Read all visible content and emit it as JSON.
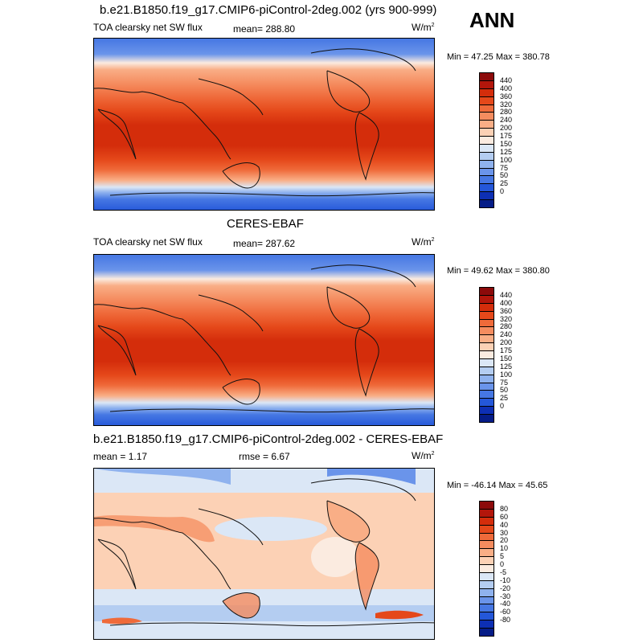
{
  "season": "ANN",
  "panels": [
    {
      "title": "b.e21.B1850.f19_g17.CMIP6-piControl-2deg.002 (yrs 900-999)",
      "left_label": "TOA clearsky net SW flux",
      "center_label": "mean= 288.80",
      "unit": "W/m",
      "unit_exp": "2",
      "minmax": "Min =  47.25 Max = 380.78"
    },
    {
      "title": "CERES-EBAF",
      "left_label": "TOA clearsky net SW flux",
      "center_label": "mean= 287.62",
      "unit": "W/m",
      "unit_exp": "2",
      "minmax": "Min =  49.62 Max = 380.80"
    },
    {
      "title": "b.e21.B1850.f19_g17.CMIP6-piControl-2deg.002 - CERES-EBAF",
      "left_label": "mean =   1.17",
      "center_label": "rmse =   6.67",
      "unit": "W/m",
      "unit_exp": "2",
      "minmax": "Min = -46.14 Max =  45.65"
    }
  ],
  "colorbar_abs": {
    "labels": [
      "440",
      "400",
      "360",
      "320",
      "280",
      "240",
      "200",
      "175",
      "150",
      "125",
      "100",
      "75",
      "50",
      "25",
      "0"
    ],
    "colors": [
      "#8c0a0a",
      "#b3160b",
      "#d42d0b",
      "#e5481a",
      "#ef6a3a",
      "#f58c5f",
      "#f9ae86",
      "#fcd1b5",
      "#fbebe0",
      "#dbe7f6",
      "#b4cdf1",
      "#8fb2ee",
      "#6a94ea",
      "#4677e3",
      "#2457d9",
      "#0d2fb4",
      "#051c87"
    ]
  },
  "colorbar_diff": {
    "labels": [
      "80",
      "60",
      "40",
      "30",
      "20",
      "10",
      "5",
      "0",
      "-5",
      "-10",
      "-20",
      "-30",
      "-40",
      "-60",
      "-80"
    ],
    "colors": [
      "#8c0a0a",
      "#b3160b",
      "#d42d0b",
      "#e5481a",
      "#ef6a3a",
      "#f58c5f",
      "#f9ae86",
      "#fcd1b5",
      "#fbebe0",
      "#dbe7f6",
      "#b4cdf1",
      "#8fb2ee",
      "#6a94ea",
      "#4677e3",
      "#2457d9",
      "#0d2fb4",
      "#051c87"
    ]
  }
}
